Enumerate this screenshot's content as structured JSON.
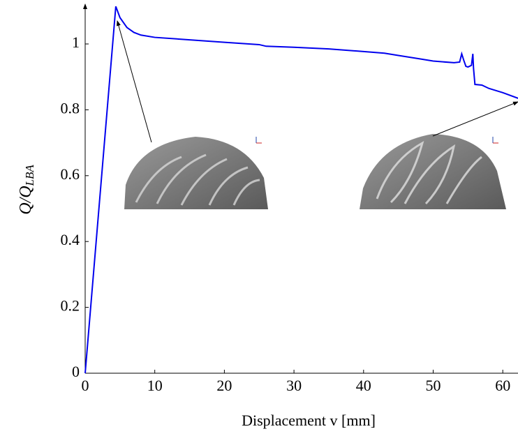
{
  "chart_data": {
    "type": "line",
    "xlabel": "Displacement v [mm]",
    "ylabel": "Q/Q",
    "ylabel_subscript": "LBA",
    "x": [
      0,
      4.4,
      5,
      6,
      7,
      8,
      10,
      20,
      25,
      26,
      30,
      35,
      40,
      43,
      45,
      48,
      50,
      53,
      53.8,
      54.1,
      54.4,
      54.7,
      55,
      55.5,
      55.7,
      55.8,
      56,
      57,
      58,
      60,
      62.2
    ],
    "series": [
      {
        "color": "#0000ee",
        "values": [
          0,
          1.114,
          1.08,
          1.05,
          1.035,
          1.027,
          1.02,
          1.005,
          0.998,
          0.993,
          0.99,
          0.985,
          0.977,
          0.972,
          0.965,
          0.955,
          0.948,
          0.943,
          0.945,
          0.97,
          0.95,
          0.932,
          0.93,
          0.935,
          0.97,
          0.925,
          0.877,
          0.875,
          0.865,
          0.852,
          0.835
        ]
      }
    ],
    "xlim": [
      0,
      62.2
    ],
    "ylim": [
      0,
      1.12
    ],
    "xticks": [
      0,
      10,
      20,
      30,
      40,
      50,
      60
    ],
    "yticks": [
      0,
      0.2,
      0.4,
      0.6,
      0.8,
      1
    ]
  }
}
